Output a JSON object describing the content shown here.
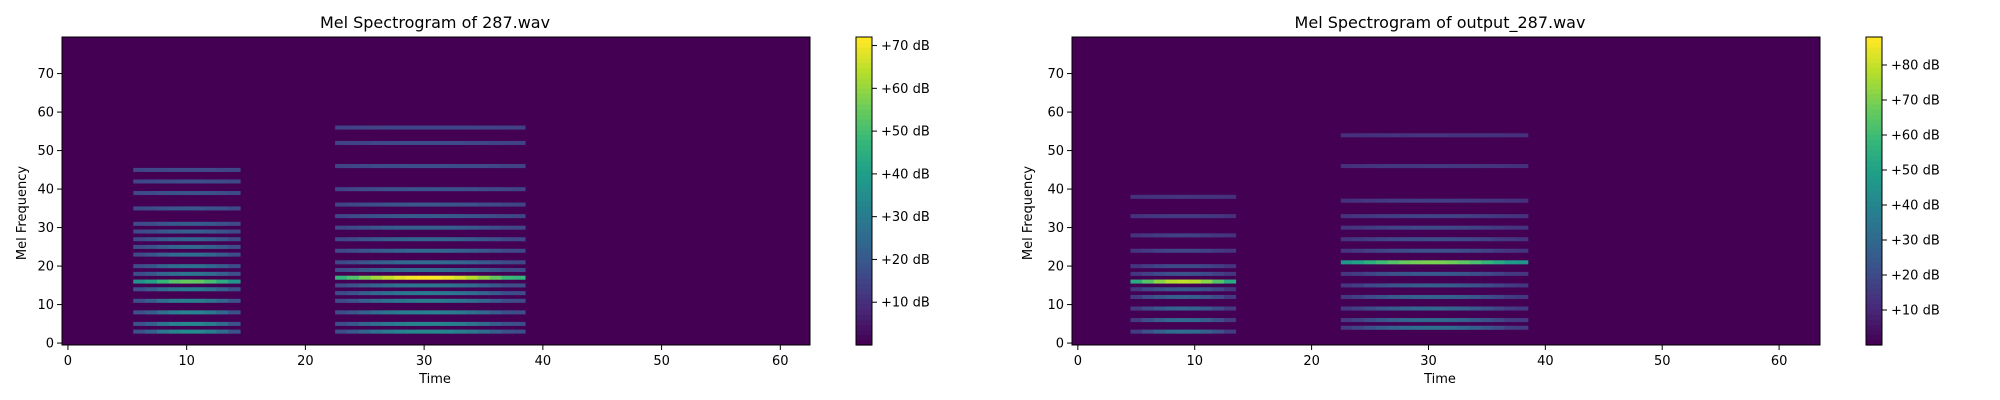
{
  "chart_data": [
    {
      "type": "heatmap",
      "title": "Mel Spectrogram of 287.wav",
      "xlabel": "Time",
      "ylabel": "Mel Frequency",
      "x_ticks": [
        0,
        10,
        20,
        30,
        40,
        50,
        60
      ],
      "y_ticks": [
        0,
        10,
        20,
        30,
        40,
        50,
        60,
        70
      ],
      "xlim": [
        -0.5,
        62.5
      ],
      "ylim": [
        -0.5,
        79.5
      ],
      "colormap": "viridis",
      "colorbar": {
        "min": 0,
        "max": 72,
        "ticks": [
          "+10 dB",
          "+20 dB",
          "+30 dB",
          "+40 dB",
          "+50 dB",
          "+60 dB",
          "+70 dB"
        ],
        "tick_values": [
          10,
          20,
          30,
          40,
          50,
          60,
          70
        ]
      },
      "segments": [
        {
          "t_start": 6,
          "t_end": 14.5,
          "harmonic_bins": [
            3,
            5,
            8,
            11,
            14,
            16,
            18,
            20,
            23,
            25,
            27,
            29,
            31,
            35,
            39,
            42,
            45
          ],
          "peak_bin": 16,
          "peak_db": 55,
          "base_db": 15
        },
        {
          "t_start": 22.5,
          "t_end": 38,
          "harmonic_bins": [
            3,
            5,
            8,
            11,
            13,
            15,
            17,
            19,
            21,
            24,
            27,
            30,
            33,
            36,
            40,
            46,
            52,
            56
          ],
          "peak_bin": 17,
          "peak_db": 72,
          "base_db": 14
        }
      ]
    },
    {
      "type": "heatmap",
      "title": "Mel Spectrogram of output_287.wav",
      "xlabel": "Time",
      "ylabel": "Mel Frequency",
      "x_ticks": [
        0,
        10,
        20,
        30,
        40,
        50,
        60
      ],
      "y_ticks": [
        0,
        10,
        20,
        30,
        40,
        50,
        60,
        70
      ],
      "xlim": [
        -0.5,
        63.5
      ],
      "ylim": [
        -0.5,
        79.5
      ],
      "colormap": "viridis",
      "colorbar": {
        "min": 0,
        "max": 88,
        "ticks": [
          "+10 dB",
          "+20 dB",
          "+30 dB",
          "+40 dB",
          "+50 dB",
          "+60 dB",
          "+70 dB",
          "+80 dB"
        ],
        "tick_values": [
          10,
          20,
          30,
          40,
          50,
          60,
          70,
          80
        ]
      },
      "segments": [
        {
          "t_start": 4.5,
          "t_end": 13.5,
          "harmonic_bins": [
            3,
            6,
            9,
            12,
            14,
            16,
            18,
            20,
            24,
            28,
            33,
            38
          ],
          "peak_bin": 16,
          "peak_db": 80,
          "base_db": 12
        },
        {
          "t_start": 22.5,
          "t_end": 38,
          "harmonic_bins": [
            4,
            6,
            9,
            12,
            15,
            18,
            21,
            24,
            27,
            30,
            33,
            37,
            46,
            54
          ],
          "peak_bin": 21,
          "peak_db": 70,
          "base_db": 12
        }
      ]
    }
  ]
}
